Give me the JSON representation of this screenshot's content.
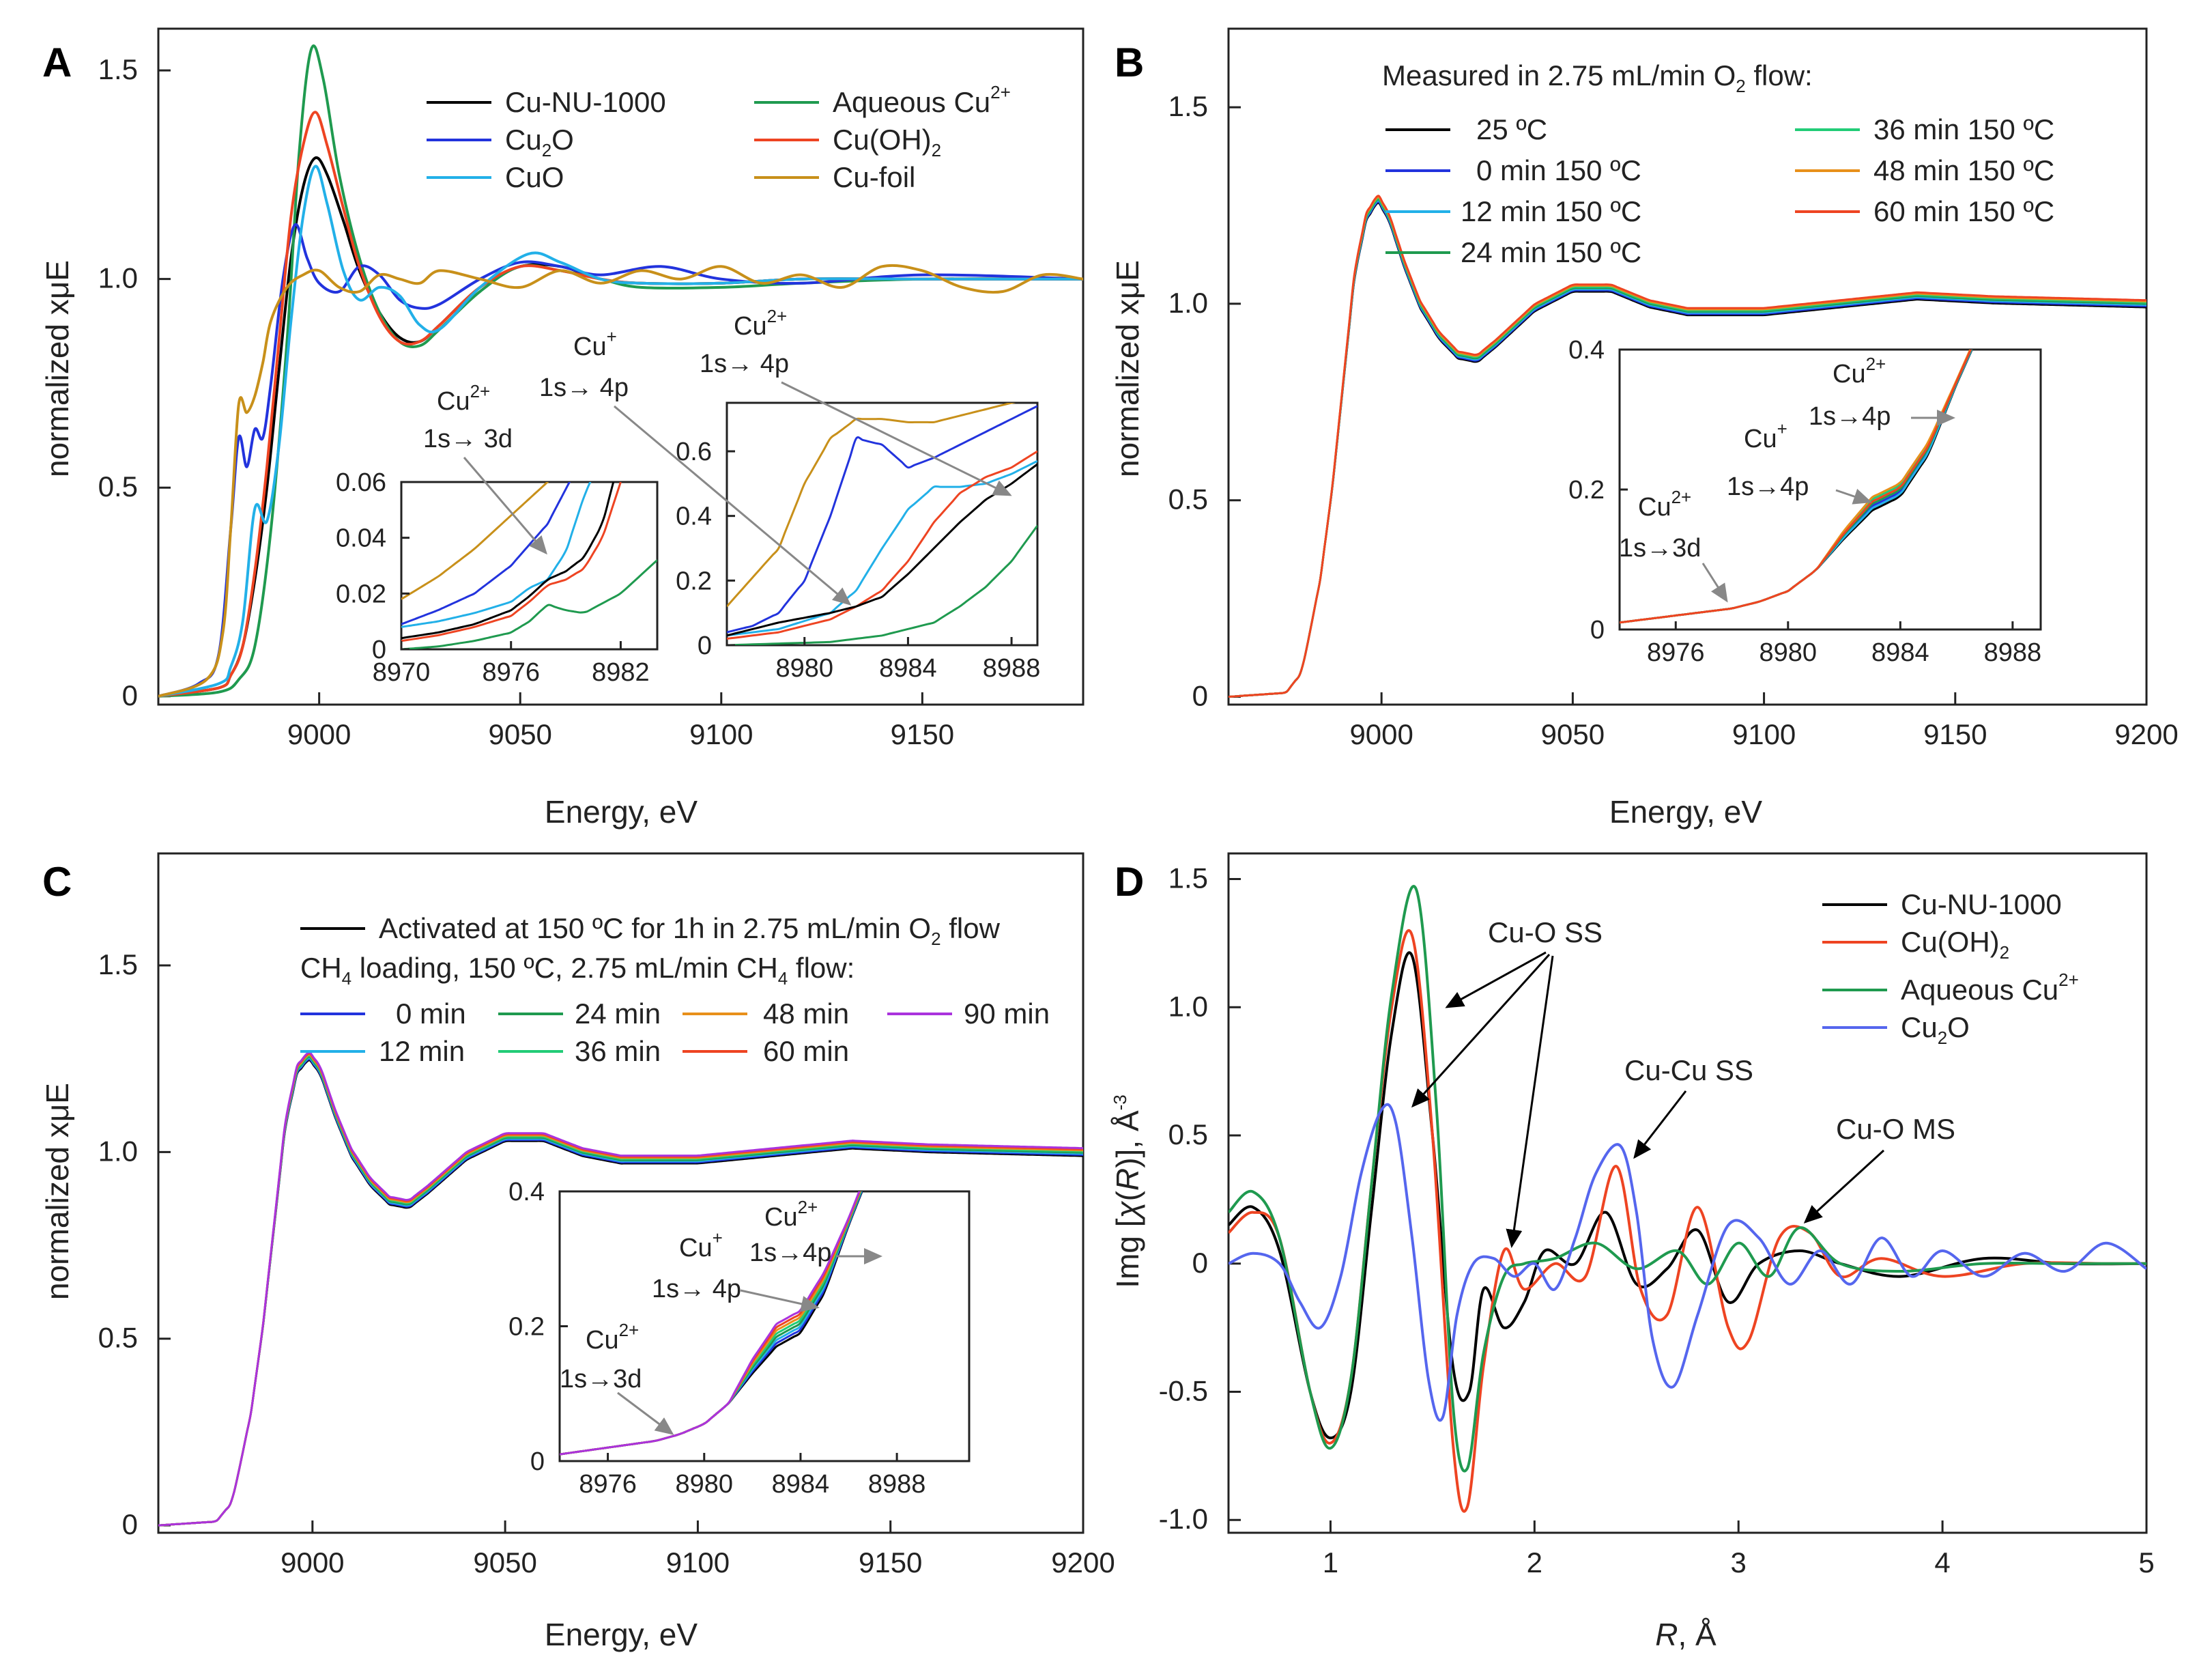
{
  "chart_data": [
    {
      "panel": "A",
      "type": "line",
      "xlabel": "Energy, eV",
      "ylabel": "normalized xμE",
      "xlim": [
        8960,
        9190
      ],
      "ylim": [
        -0.02,
        1.6
      ],
      "xticks": [
        "9000",
        "9050",
        "9100",
        "9150"
      ],
      "yticks": [
        "0",
        "0.5",
        "1.0",
        "1.5"
      ],
      "legend_position": "top-right",
      "series": [
        {
          "name": "Cu-NU-1000",
          "color": "#000000",
          "x": [
            8960,
            8975,
            8978,
            8981,
            8984,
            8987,
            8990,
            8993,
            8996,
            8999,
            9002,
            9006,
            9010,
            9015,
            9020,
            9025,
            9030,
            9040,
            9050,
            9060,
            9070,
            9080,
            9100,
            9120,
            9150,
            9190
          ],
          "y": [
            0,
            0.02,
            0.05,
            0.12,
            0.28,
            0.5,
            0.78,
            1.05,
            1.22,
            1.29,
            1.25,
            1.14,
            1.02,
            0.92,
            0.86,
            0.85,
            0.89,
            0.98,
            1.03,
            1.03,
            1.0,
            0.99,
            0.99,
            1.0,
            1.0,
            1.0
          ]
        },
        {
          "name": "Aqueous Cu2+",
          "color": "#1f9a4f",
          "x": [
            8960,
            8975,
            8980,
            8984,
            8988,
            8992,
            8995,
            8998,
            9001,
            9005,
            9010,
            9015,
            9020,
            9025,
            9030,
            9040,
            9050,
            9060,
            9070,
            9080,
            9100,
            9120,
            9150,
            9190
          ],
          "y": [
            0,
            0.01,
            0.04,
            0.12,
            0.4,
            0.85,
            1.3,
            1.55,
            1.48,
            1.25,
            1.05,
            0.92,
            0.85,
            0.84,
            0.88,
            0.97,
            1.03,
            1.02,
            1.0,
            0.98,
            0.98,
            0.99,
            1.0,
            1.0
          ]
        },
        {
          "name": "Cu2O",
          "color": "#2233dd",
          "x": [
            8960,
            8970,
            8975,
            8978,
            8980,
            8982,
            8984,
            8986,
            8988,
            8991,
            8994,
            8997,
            9000,
            9005,
            9010,
            9015,
            9020,
            9025,
            9030,
            9040,
            9050,
            9060,
            9070,
            9085,
            9100,
            9120,
            9150,
            9190
          ],
          "y": [
            0,
            0.03,
            0.1,
            0.4,
            0.62,
            0.55,
            0.64,
            0.62,
            0.75,
            1.0,
            1.13,
            1.05,
            0.99,
            0.97,
            1.03,
            1.01,
            0.95,
            0.93,
            0.94,
            1.0,
            1.04,
            1.03,
            1.01,
            1.03,
            1.0,
            0.99,
            1.01,
            1.0
          ]
        },
        {
          "name": "Cu(OH)2",
          "color": "#ee4422",
          "x": [
            8960,
            8975,
            8978,
            8981,
            8984,
            8987,
            8990,
            8993,
            8996,
            8999,
            9002,
            9006,
            9010,
            9015,
            9020,
            9025,
            9030,
            9040,
            9050,
            9060,
            9070,
            9080,
            9100,
            9120,
            9150,
            9190
          ],
          "y": [
            0,
            0.02,
            0.05,
            0.12,
            0.3,
            0.55,
            0.85,
            1.15,
            1.32,
            1.4,
            1.32,
            1.17,
            1.03,
            0.91,
            0.85,
            0.85,
            0.89,
            0.98,
            1.03,
            1.02,
            1.0,
            0.99,
            0.99,
            1.0,
            1.0,
            1.0
          ]
        },
        {
          "name": "CuO",
          "color": "#22b0e8",
          "x": [
            8960,
            8975,
            8978,
            8981,
            8984,
            8987,
            8990,
            8993,
            8996,
            8999,
            9002,
            9006,
            9010,
            9015,
            9020,
            9025,
            9030,
            9040,
            9052,
            9060,
            9070,
            9080,
            9100,
            9120,
            9150,
            9190
          ],
          "y": [
            0,
            0.03,
            0.07,
            0.18,
            0.45,
            0.42,
            0.6,
            0.9,
            1.15,
            1.27,
            1.18,
            1.02,
            0.95,
            0.98,
            0.96,
            0.89,
            0.88,
            0.98,
            1.06,
            1.04,
            1.0,
            0.99,
            0.99,
            1.0,
            1.0,
            1.0
          ]
        },
        {
          "name": "Cu-foil",
          "color": "#c8901a",
          "x": [
            8960,
            8972,
            8976,
            8978,
            8980,
            8982,
            8984,
            8986,
            8988,
            8992,
            8996,
            9000,
            9005,
            9010,
            9015,
            9020,
            9025,
            9030,
            9040,
            9050,
            9060,
            9070,
            9080,
            9090,
            9100,
            9110,
            9120,
            9130,
            9140,
            9150,
            9160,
            9170,
            9180,
            9190
          ],
          "y": [
            0,
            0.04,
            0.15,
            0.4,
            0.7,
            0.68,
            0.72,
            0.8,
            0.9,
            0.98,
            1.01,
            1.02,
            0.98,
            0.97,
            1.01,
            1.0,
            0.99,
            1.02,
            1.0,
            0.98,
            1.02,
            0.99,
            1.02,
            1.0,
            1.03,
            0.99,
            1.01,
            0.98,
            1.03,
            1.02,
            0.98,
            0.97,
            1.01,
            1.0
          ]
        }
      ],
      "insets": [
        {
          "xlim": [
            8970,
            8984
          ],
          "ylim": [
            0,
            0.06
          ],
          "xticks": [
            "8970",
            "8976",
            "8982"
          ],
          "yticks": [
            "0",
            "0.02",
            "0.04",
            "0.06"
          ],
          "annotation": {
            "ion": "Cu",
            "charge": "2+",
            "transition": "1s→3d"
          }
        },
        {
          "xlim": [
            8977,
            8989
          ],
          "ylim": [
            0,
            0.75
          ],
          "xticks": [
            "8980",
            "8984",
            "8988"
          ],
          "yticks": [
            "0",
            "0.2",
            "0.4",
            "0.6"
          ],
          "annotations": [
            {
              "ion": "Cu",
              "charge": "+",
              "transition": "1s→ 4p"
            },
            {
              "ion": "Cu",
              "charge": "2+",
              "transition": "1s→ 4p"
            }
          ]
        }
      ]
    },
    {
      "panel": "B",
      "type": "line",
      "title": "Measured in 2.75 mL/min O2 flow:",
      "xlabel": "Energy, eV",
      "ylabel": "normalized xμE",
      "xlim": [
        8960,
        9200
      ],
      "ylim": [
        -0.02,
        1.7
      ],
      "xticks": [
        "9000",
        "9050",
        "9100",
        "9150",
        "9200"
      ],
      "yticks": [
        "0",
        "0.5",
        "1.0",
        "1.5"
      ],
      "series": [
        {
          "name": "25 ºC",
          "color": "#000000"
        },
        {
          "name": "0 min 150 ºC",
          "color": "#2233dd"
        },
        {
          "name": "12 min 150 ºC",
          "color": "#22b0e8"
        },
        {
          "name": "24 min 150 ºC",
          "color": "#1f9a4f"
        },
        {
          "name": "36 min 150 ºC",
          "color": "#22cc77"
        },
        {
          "name": "48 min 150 ºC",
          "color": "#e8901a"
        },
        {
          "name": "60 min 150 ºC",
          "color": "#ee4422"
        }
      ],
      "common_curve": {
        "x": [
          8960,
          8975,
          8979,
          8981,
          8984,
          8987,
          8990,
          8993,
          8996,
          8999,
          9002,
          9006,
          9010,
          9015,
          9020,
          9025,
          9030,
          9040,
          9050,
          9060,
          9070,
          9080,
          9100,
          9120,
          9140,
          9160,
          9200
        ],
        "y": [
          0,
          0.01,
          0.06,
          0.15,
          0.3,
          0.52,
          0.8,
          1.08,
          1.22,
          1.27,
          1.22,
          1.1,
          1.0,
          0.92,
          0.87,
          0.86,
          0.9,
          0.99,
          1.04,
          1.04,
          1.0,
          0.98,
          0.98,
          1.0,
          1.02,
          1.01,
          1.0
        ]
      },
      "inset": {
        "xlim": [
          8974,
          8989
        ],
        "ylim": [
          0,
          0.4
        ],
        "xticks": [
          "8976",
          "8980",
          "8984",
          "8988"
        ],
        "yticks": [
          "0",
          "0.2",
          "0.4"
        ],
        "annotations": [
          {
            "ion": "Cu",
            "charge": "2+",
            "transition": "1s→3d"
          },
          {
            "ion": "Cu",
            "charge": "+",
            "transition": "1s→4p"
          },
          {
            "ion": "Cu",
            "charge": "2+",
            "transition": "1s→4p"
          }
        ]
      }
    },
    {
      "panel": "C",
      "type": "line",
      "title": "CH4 loading, 150 ºC, 2.75 mL/min CH4 flow:",
      "xlabel": "Energy, eV",
      "ylabel": "normalized xμE",
      "xlim": [
        8960,
        9200
      ],
      "ylim": [
        -0.02,
        1.8
      ],
      "xticks": [
        "9000",
        "9050",
        "9100",
        "9150",
        "9200"
      ],
      "yticks": [
        "0",
        "0.5",
        "1.0",
        "1.5"
      ],
      "series": [
        {
          "name": "Activated at 150 ºC for 1h in 2.75 mL/min O2 flow",
          "color": "#000000"
        },
        {
          "name": "0 min",
          "color": "#2233dd"
        },
        {
          "name": "12 min",
          "color": "#22b0e8"
        },
        {
          "name": "24 min",
          "color": "#1f9a4f"
        },
        {
          "name": "36 min",
          "color": "#22cc77"
        },
        {
          "name": "48 min",
          "color": "#e8901a"
        },
        {
          "name": "60 min",
          "color": "#ee4422"
        },
        {
          "name": "90 min",
          "color": "#aa33dd"
        }
      ],
      "common_curve": {
        "x": [
          8960,
          8975,
          8979,
          8981,
          8984,
          8987,
          8990,
          8993,
          8996,
          8999,
          9002,
          9006,
          9010,
          9015,
          9020,
          9025,
          9030,
          9040,
          9050,
          9060,
          9070,
          9080,
          9100,
          9120,
          9140,
          9160,
          9200
        ],
        "y": [
          0,
          0.01,
          0.06,
          0.15,
          0.3,
          0.52,
          0.8,
          1.08,
          1.22,
          1.26,
          1.22,
          1.1,
          1.0,
          0.92,
          0.87,
          0.86,
          0.9,
          0.99,
          1.04,
          1.04,
          1.0,
          0.98,
          0.98,
          1.0,
          1.02,
          1.01,
          1.0
        ]
      },
      "inset": {
        "xlim": [
          8974,
          8991
        ],
        "ylim": [
          0,
          0.4
        ],
        "xticks": [
          "8976",
          "8980",
          "8984",
          "8988"
        ],
        "yticks": [
          "0",
          "0.2",
          "0.4"
        ],
        "annotations": [
          {
            "ion": "Cu",
            "charge": "2+",
            "transition": "1s→3d"
          },
          {
            "ion": "Cu",
            "charge": "+",
            "transition": "1s→ 4p"
          },
          {
            "ion": "Cu",
            "charge": "2+",
            "transition": "1s→4p"
          }
        ]
      }
    },
    {
      "panel": "D",
      "type": "line",
      "xlabel": "R, Å",
      "ylabel": "Img [χ(R)], Å⁻³",
      "xlim": [
        0.5,
        5.0
      ],
      "ylim": [
        -1.05,
        1.6
      ],
      "xticks": [
        "1",
        "2",
        "3",
        "4",
        "5"
      ],
      "yticks": [
        "-1.0",
        "-0.5",
        "0",
        "0.5",
        "1.0",
        "1.5"
      ],
      "legend_position": "top-right",
      "series": [
        {
          "name": "Cu-NU-1000",
          "color": "#000000",
          "x": [
            0.5,
            0.62,
            0.75,
            0.9,
            1.0,
            1.1,
            1.2,
            1.3,
            1.4,
            1.5,
            1.6,
            1.68,
            1.75,
            1.85,
            1.95,
            2.05,
            2.2,
            2.35,
            2.5,
            2.65,
            2.8,
            2.95,
            3.1,
            3.3,
            3.5,
            3.8,
            4.2,
            4.6,
            5.0
          ],
          "y": [
            0.15,
            0.22,
            0.05,
            -0.5,
            -0.68,
            -0.5,
            0.2,
            0.9,
            1.2,
            0.5,
            -0.4,
            -0.5,
            -0.1,
            -0.25,
            -0.15,
            0.05,
            0.0,
            0.2,
            -0.08,
            -0.02,
            0.13,
            -0.15,
            0.0,
            0.05,
            0.0,
            -0.05,
            0.02,
            0.0,
            0.0
          ]
        },
        {
          "name": "Cu(OH)2",
          "color": "#ee4422",
          "x": [
            0.5,
            0.62,
            0.75,
            0.9,
            1.0,
            1.1,
            1.2,
            1.3,
            1.4,
            1.5,
            1.6,
            1.67,
            1.75,
            1.85,
            1.95,
            2.1,
            2.25,
            2.4,
            2.52,
            2.65,
            2.8,
            2.95,
            3.05,
            3.2,
            3.35,
            3.5,
            3.7,
            4.0,
            4.4,
            4.8,
            5.0
          ],
          "y": [
            0.12,
            0.2,
            0.1,
            -0.5,
            -0.7,
            -0.45,
            0.3,
            1.0,
            1.28,
            0.5,
            -0.7,
            -0.95,
            -0.4,
            0.05,
            -0.1,
            0.0,
            -0.05,
            0.38,
            -0.1,
            -0.2,
            0.22,
            -0.25,
            -0.3,
            0.1,
            0.12,
            -0.05,
            0.02,
            -0.05,
            0.0,
            0.0,
            0.0
          ]
        },
        {
          "name": "Aqueous Cu2+",
          "color": "#1f9a4f",
          "x": [
            0.5,
            0.62,
            0.75,
            0.9,
            1.0,
            1.1,
            1.2,
            1.3,
            1.42,
            1.52,
            1.6,
            1.67,
            1.75,
            1.85,
            1.95,
            2.1,
            2.3,
            2.5,
            2.7,
            2.85,
            3.0,
            3.15,
            3.3,
            3.5,
            3.8,
            4.2,
            4.6,
            5.0
          ],
          "y": [
            0.2,
            0.28,
            0.1,
            -0.5,
            -0.72,
            -0.45,
            0.3,
            1.05,
            1.46,
            0.6,
            -0.55,
            -0.8,
            -0.35,
            -0.05,
            0.0,
            0.02,
            0.08,
            -0.02,
            0.05,
            -0.08,
            0.08,
            -0.05,
            0.14,
            0.0,
            -0.03,
            0.0,
            0.0,
            0.0
          ]
        },
        {
          "name": "Cu2O",
          "color": "#5566ee",
          "x": [
            0.5,
            0.62,
            0.75,
            0.85,
            0.95,
            1.05,
            1.15,
            1.25,
            1.32,
            1.4,
            1.48,
            1.55,
            1.62,
            1.7,
            1.8,
            1.9,
            2.0,
            2.1,
            2.2,
            2.3,
            2.42,
            2.5,
            2.58,
            2.68,
            2.8,
            2.95,
            3.1,
            3.25,
            3.4,
            3.55,
            3.7,
            3.85,
            4.0,
            4.2,
            4.4,
            4.6,
            4.8,
            5.0
          ],
          "y": [
            0.0,
            0.04,
            0.0,
            -0.15,
            -0.25,
            -0.05,
            0.35,
            0.6,
            0.55,
            0.1,
            -0.45,
            -0.6,
            -0.2,
            0.0,
            0.02,
            -0.05,
            0.0,
            -0.1,
            0.1,
            0.35,
            0.46,
            0.2,
            -0.3,
            -0.48,
            -0.2,
            0.15,
            0.1,
            -0.08,
            0.05,
            -0.08,
            0.1,
            -0.05,
            0.05,
            -0.05,
            0.04,
            -0.03,
            0.08,
            -0.02
          ]
        }
      ],
      "annotations": [
        "Cu-O SS",
        "Cu-Cu SS",
        "Cu-O MS"
      ]
    }
  ]
}
